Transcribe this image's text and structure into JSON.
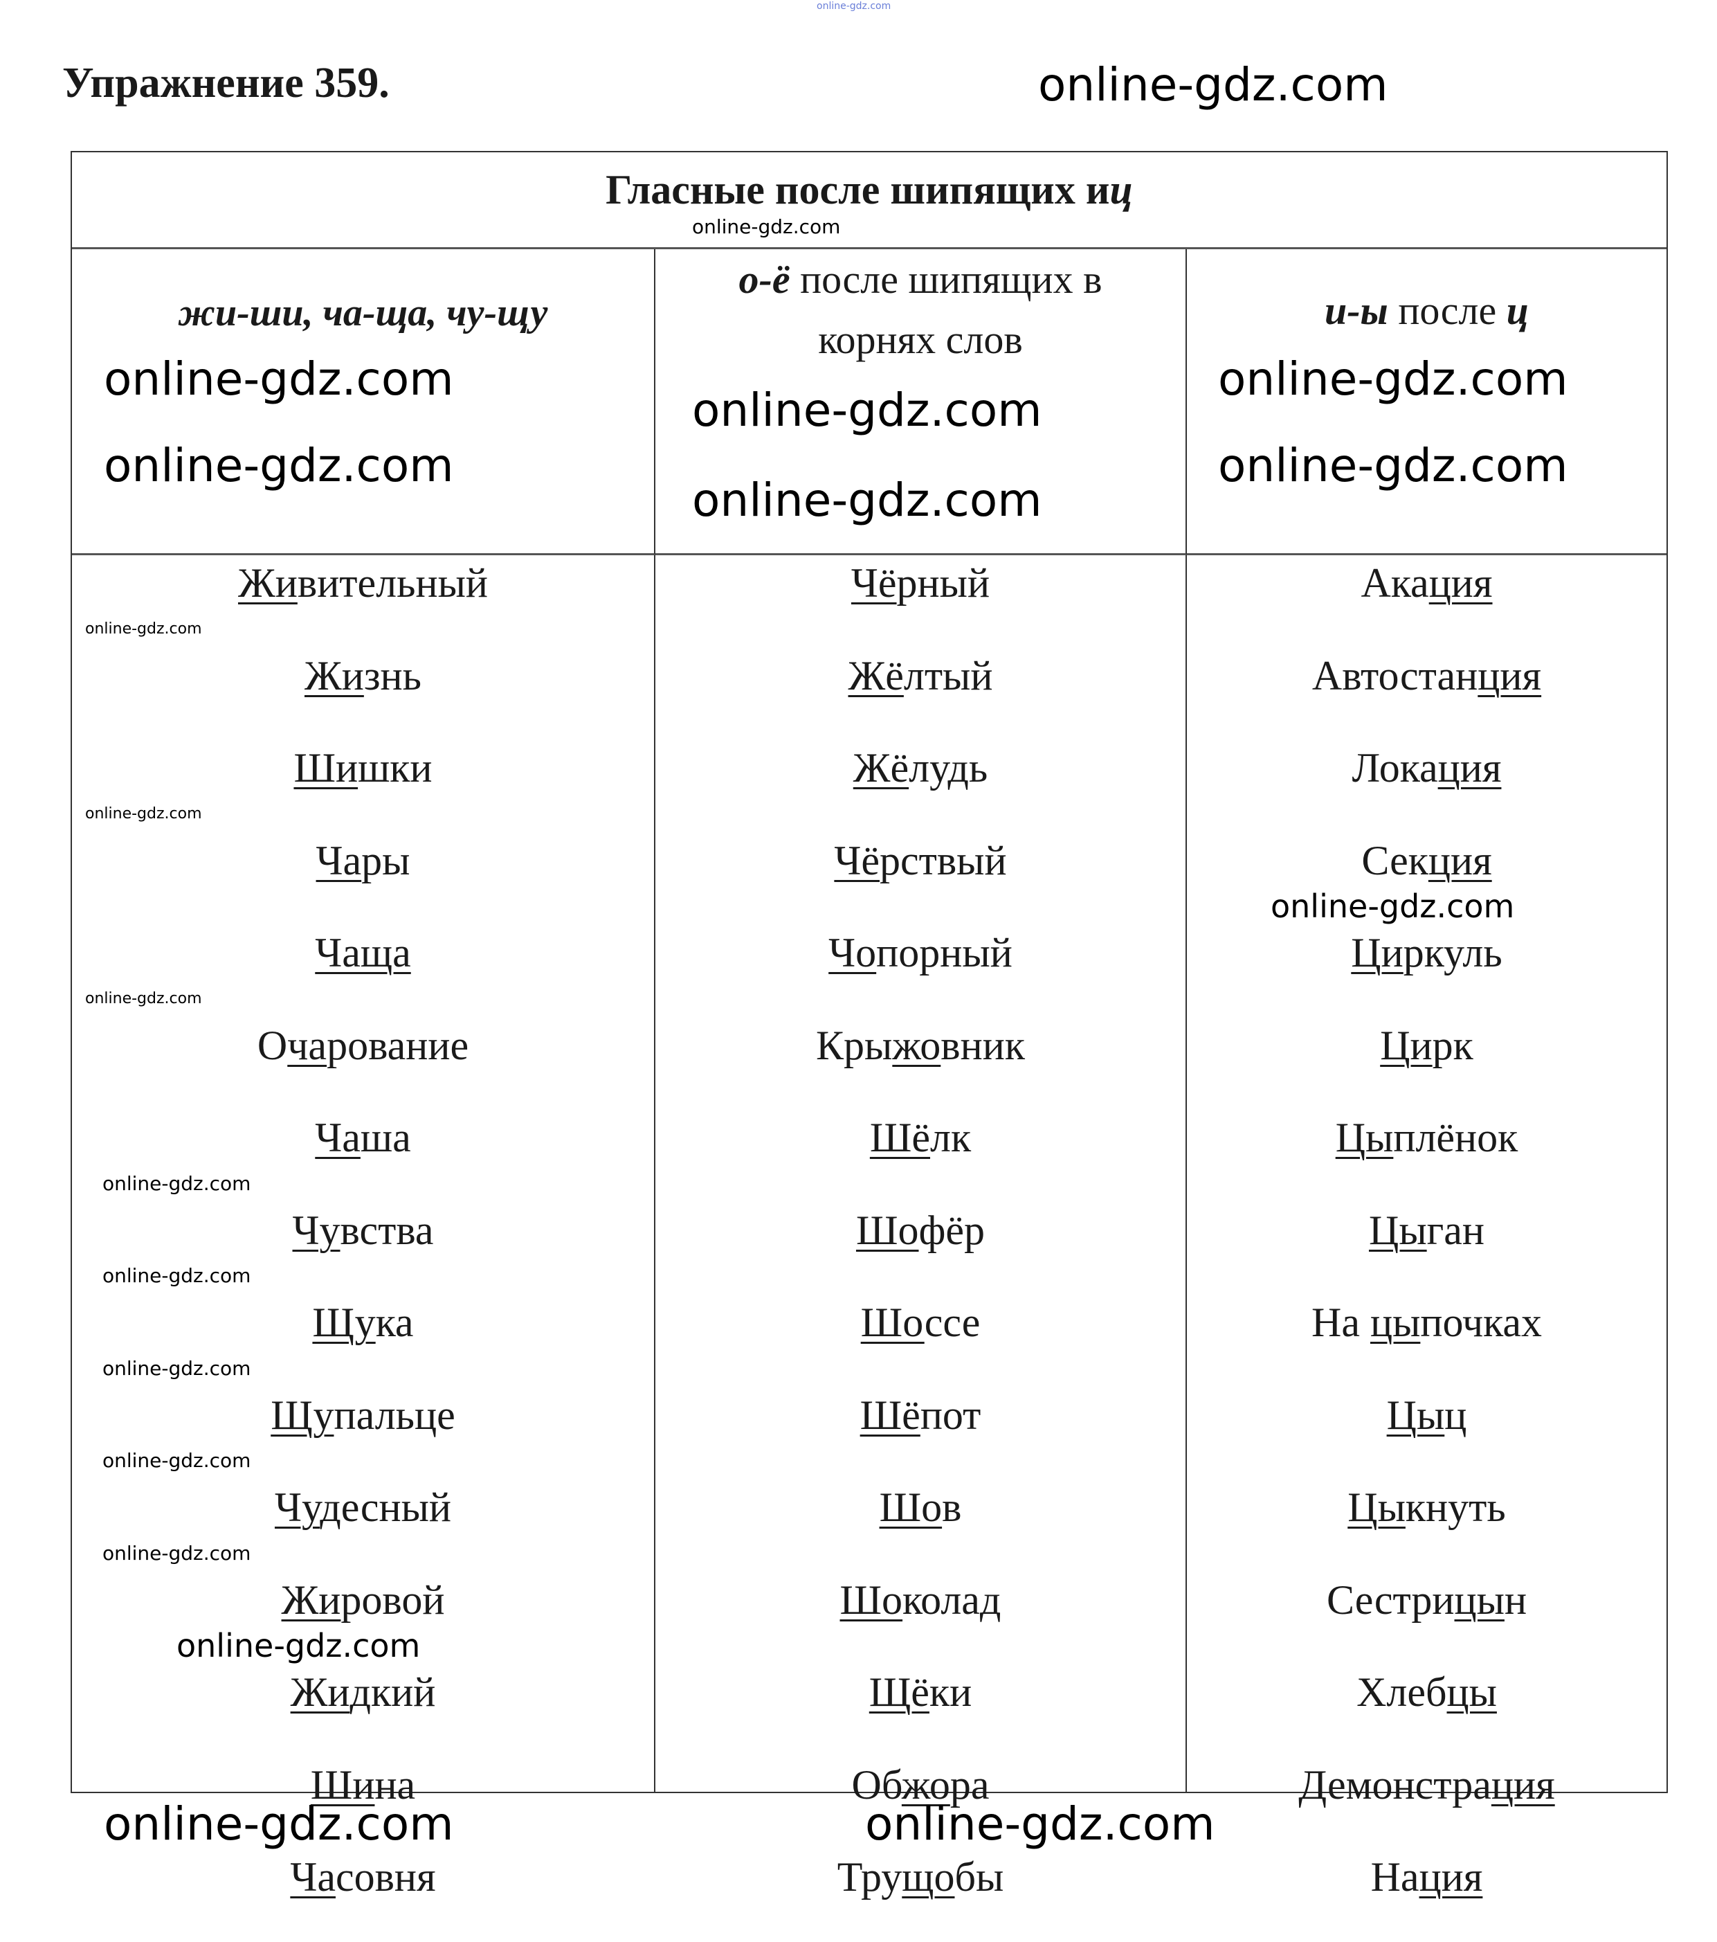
{
  "header": {
    "title": "Упражнение 359."
  },
  "table": {
    "title_main": "Гласные после шипящих и ",
    "title_italic": "ц",
    "columns": [
      {
        "head_italic": "жи-ши, ча-ща, чу-щу",
        "head_rest": "",
        "head_line2": ""
      },
      {
        "head_italic": "о-ё",
        "head_rest": " после шипящих в",
        "head_line2": "корнях слов"
      },
      {
        "head_italic": "и-ы",
        "head_rest": " после ",
        "head_italic2": "ц"
      }
    ],
    "col1": [
      [
        [
          "Жи",
          1
        ],
        [
          "вительный",
          0
        ]
      ],
      [
        [
          "Жи",
          1
        ],
        [
          "знь",
          0
        ]
      ],
      [
        [
          "Ши",
          1
        ],
        [
          "шки",
          0
        ]
      ],
      [
        [
          "Ча",
          1
        ],
        [
          "ры",
          0
        ]
      ],
      [
        [
          "Чаща",
          1
        ]
      ],
      [
        [
          "О",
          0
        ],
        [
          "ча",
          1
        ],
        [
          "рование",
          0
        ]
      ],
      [
        [
          "Ча",
          1
        ],
        [
          "ша",
          0
        ]
      ],
      [
        [
          "Чу",
          1
        ],
        [
          "вства",
          0
        ]
      ],
      [
        [
          "Щу",
          1
        ],
        [
          "ка",
          0
        ]
      ],
      [
        [
          "Щу",
          1
        ],
        [
          "пальце",
          0
        ]
      ],
      [
        [
          "Чу",
          1
        ],
        [
          "десный",
          0
        ]
      ],
      [
        [
          "Жи",
          1
        ],
        [
          "ровой",
          0
        ]
      ],
      [
        [
          "Жи",
          1
        ],
        [
          "дкий",
          0
        ]
      ],
      [
        [
          "Ши",
          1
        ],
        [
          "на",
          0
        ]
      ],
      [
        [
          "Ча",
          1
        ],
        [
          "совня",
          0
        ]
      ]
    ],
    "col2": [
      [
        [
          "Чё",
          1
        ],
        [
          "рный",
          0
        ]
      ],
      [
        [
          "Жё",
          1
        ],
        [
          "лтый",
          0
        ]
      ],
      [
        [
          "Жё",
          1
        ],
        [
          "лудь",
          0
        ]
      ],
      [
        [
          "Чё",
          1
        ],
        [
          "рствый",
          0
        ]
      ],
      [
        [
          "Чо",
          1
        ],
        [
          "порный",
          0
        ]
      ],
      [
        [
          "Кры",
          0
        ],
        [
          "жо",
          1
        ],
        [
          "вник",
          0
        ]
      ],
      [
        [
          "Шё",
          1
        ],
        [
          "лк",
          0
        ]
      ],
      [
        [
          "Шо",
          1
        ],
        [
          "фёр",
          0
        ]
      ],
      [
        [
          "Шо",
          1
        ],
        [
          "ссе",
          0
        ]
      ],
      [
        [
          "Шё",
          1
        ],
        [
          "пот",
          0
        ]
      ],
      [
        [
          "Шо",
          1
        ],
        [
          "в",
          0
        ]
      ],
      [
        [
          "Шо",
          1
        ],
        [
          "колад",
          0
        ]
      ],
      [
        [
          "Щё",
          1
        ],
        [
          "ки",
          0
        ]
      ],
      [
        [
          "Об",
          0
        ],
        [
          "жо",
          1
        ],
        [
          "ра",
          0
        ]
      ],
      [
        [
          "Тру",
          0
        ],
        [
          "що",
          1
        ],
        [
          "бы",
          0
        ]
      ]
    ],
    "col3": [
      [
        [
          "Ака",
          0
        ],
        [
          "ция",
          1
        ]
      ],
      [
        [
          "Автостан",
          0
        ],
        [
          "ция",
          1
        ]
      ],
      [
        [
          "Лока",
          0
        ],
        [
          "ция",
          1
        ]
      ],
      [
        [
          "Сек",
          0
        ],
        [
          "ция",
          1
        ]
      ],
      [
        [
          "Ци",
          1
        ],
        [
          "ркуль",
          0
        ]
      ],
      [
        [
          "Ци",
          1
        ],
        [
          "рк",
          0
        ]
      ],
      [
        [
          "Цы",
          1
        ],
        [
          "плёнок",
          0
        ]
      ],
      [
        [
          "Цы",
          1
        ],
        [
          "ган",
          0
        ]
      ],
      [
        [
          "На ",
          0
        ],
        [
          "цы",
          1
        ],
        [
          "почках",
          0
        ]
      ],
      [
        [
          "Цы",
          1
        ],
        [
          "ц",
          0
        ]
      ],
      [
        [
          "Цы",
          1
        ],
        [
          "кнуть",
          0
        ]
      ],
      [
        [
          "Сестри",
          0
        ],
        [
          "цы",
          1
        ],
        [
          "н",
          0
        ]
      ],
      [
        [
          "Хлеб",
          0
        ],
        [
          "цы",
          1
        ]
      ],
      [
        [
          "Демонстра",
          0
        ],
        [
          "ция",
          1
        ]
      ],
      [
        [
          "На",
          0
        ],
        [
          "ция",
          1
        ]
      ]
    ]
  },
  "watermark": "online-gdz.com"
}
